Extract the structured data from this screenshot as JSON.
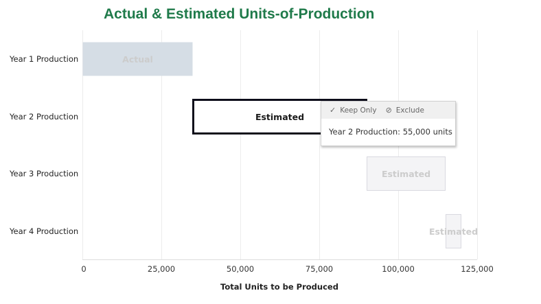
{
  "header": {
    "title": "Actual & Estimated Units-of-Production"
  },
  "chart_data": {
    "type": "bar",
    "orientation": "horizontal-gantt",
    "title": "Actual & Estimated Units-of-Production",
    "xlabel": "Total Units to be Produced",
    "ylabel": "",
    "xlim": [
      0,
      125000
    ],
    "xticks": [
      0,
      25000,
      50000,
      75000,
      100000,
      125000
    ],
    "xtick_labels": [
      "0",
      "25,000",
      "50,000",
      "75,000",
      "100,000",
      "125,000"
    ],
    "grid": true,
    "categories": [
      "Year 1 Production",
      "Year 2 Production",
      "Year 3 Production",
      "Year 4 Production"
    ],
    "bars": [
      {
        "category": "Year 1 Production",
        "start": 0,
        "end": 35000,
        "value": 35000,
        "label": "Actual",
        "type": "actual",
        "highlighted": false
      },
      {
        "category": "Year 2 Production",
        "start": 35000,
        "end": 90000,
        "value": 55000,
        "label": "Estimated",
        "type": "estimated",
        "highlighted": true
      },
      {
        "category": "Year 3 Production",
        "start": 90000,
        "end": 115000,
        "value": 25000,
        "label": "Estimated",
        "type": "estimated",
        "highlighted": false
      },
      {
        "category": "Year 4 Production",
        "start": 115000,
        "end": 120000,
        "value": 5000,
        "label": "Estimated",
        "type": "estimated",
        "highlighted": false
      }
    ],
    "colors": {
      "title": "#1f7a4a",
      "actual_fill": "#d5dde5",
      "estimated_fill": "#f4f4f6",
      "estimated_stroke": "#d9d9e0",
      "highlight_stroke": "#0d0d1a",
      "dim_text": "#cccccc",
      "grid": "#ececec"
    }
  },
  "tooltip": {
    "keep_only": "Keep Only",
    "exclude": "Exclude",
    "keep_icon": "checkmark-icon",
    "exclude_icon": "no-entry-icon",
    "text": "Year 2 Production: 55,000 units"
  }
}
